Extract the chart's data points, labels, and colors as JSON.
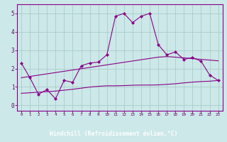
{
  "x": [
    0,
    1,
    2,
    3,
    4,
    5,
    6,
    7,
    8,
    9,
    10,
    11,
    12,
    13,
    14,
    15,
    16,
    17,
    18,
    19,
    20,
    21,
    22,
    23
  ],
  "y_main": [
    2.3,
    1.5,
    0.6,
    0.85,
    0.35,
    1.35,
    1.25,
    2.15,
    2.3,
    2.35,
    2.75,
    4.85,
    5.0,
    4.5,
    4.85,
    5.0,
    3.3,
    2.75,
    2.9,
    2.5,
    2.6,
    2.4,
    1.65,
    1.35
  ],
  "y_trend1": [
    1.5,
    1.57,
    1.64,
    1.71,
    1.78,
    1.85,
    1.92,
    1.99,
    2.06,
    2.13,
    2.2,
    2.27,
    2.34,
    2.41,
    2.48,
    2.55,
    2.62,
    2.65,
    2.62,
    2.58,
    2.54,
    2.5,
    2.46,
    2.42
  ],
  "y_trend2": [
    0.65,
    0.68,
    0.71,
    0.74,
    0.77,
    0.82,
    0.87,
    0.93,
    0.99,
    1.03,
    1.06,
    1.06,
    1.07,
    1.09,
    1.1,
    1.1,
    1.11,
    1.14,
    1.17,
    1.22,
    1.26,
    1.29,
    1.31,
    1.35
  ],
  "line_color": "#880088",
  "bg_color": "#cce8e8",
  "grid_color": "#aacccc",
  "xlabel": "Windchill (Refroidissement éolien,°C)",
  "ylim": [
    -0.3,
    5.5
  ],
  "xlim": [
    -0.5,
    23.5
  ],
  "yticks": [
    0,
    1,
    2,
    3,
    4,
    5
  ],
  "xticks": [
    0,
    1,
    2,
    3,
    4,
    5,
    6,
    7,
    8,
    9,
    10,
    11,
    12,
    13,
    14,
    15,
    16,
    17,
    18,
    19,
    20,
    21,
    22,
    23
  ],
  "xlabel_bg": "#6644aa",
  "tick_color": "#660066",
  "spine_color": "#880088"
}
